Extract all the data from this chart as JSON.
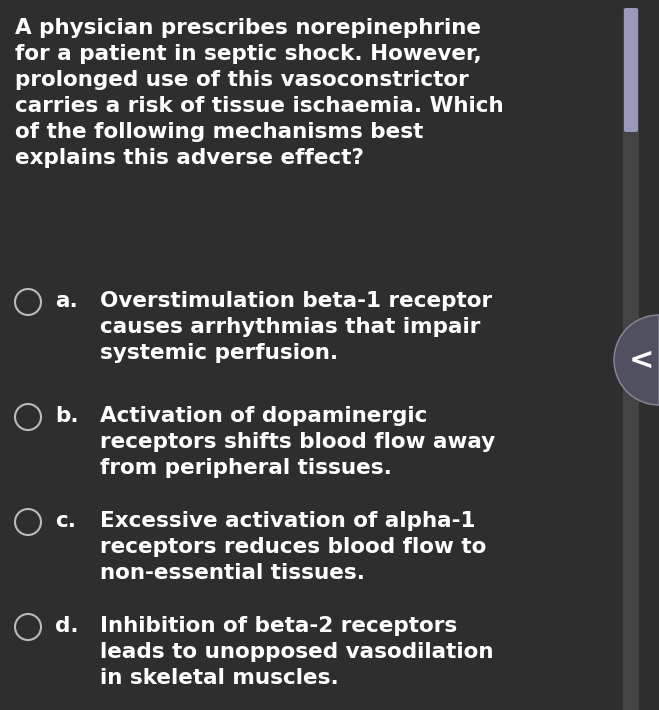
{
  "bg_color": "#2e2e2e",
  "text_color": "#ffffff",
  "question": "A physician prescribes norepinephrine\nfor a patient in septic shock. However,\nprolonged use of this vasoconstrictor\ncarries a risk of tissue ischaemia. Which\nof the following mechanisms best\nexplains this adverse effect?",
  "options": [
    {
      "label": "a.",
      "text": "Overstimulation beta-1 receptor\ncauses arrhythmias that impair\nsystemic perfusion."
    },
    {
      "label": "b.",
      "text": "Activation of dopaminergic\nreceptors shifts blood flow away\nfrom peripheral tissues."
    },
    {
      "label": "c.",
      "text": "Excessive activation of alpha-1\nreceptors reduces blood flow to\nnon-essential tissues."
    },
    {
      "label": "d.",
      "text": "Inhibition of beta-2 receptors\nleads to unopposed vasodilation\nin skeletal muscles."
    }
  ],
  "circle_edge_color": "#bbbbbb",
  "circle_linewidth": 1.5,
  "scrollbar_color": "#9999bb",
  "scrollbar_bg": "#444444",
  "arrow_bg": "#555566",
  "arrow_color": "#ffffff",
  "question_fontsize": 15.5,
  "option_label_fontsize": 15.5,
  "option_text_fontsize": 15.5,
  "figsize": [
    6.59,
    7.1
  ],
  "dpi": 100
}
